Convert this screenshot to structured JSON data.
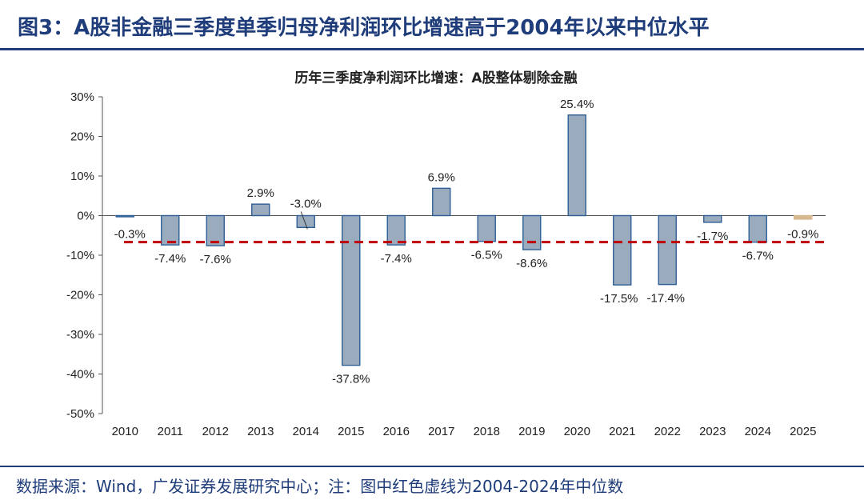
{
  "figure_title": "图3：A股非金融三季度单季归母净利润环比增速高于2004年以来中位水平",
  "footer": "数据来源：Wind，广发证券发展研究中心；注：图中红色虚线为2004-2024年中位数",
  "colors": {
    "title_blue": "#1f3d7a",
    "bar_fill": "#9aabbd",
    "bar_stroke": "#2e5f96",
    "bar_highlight": "#d8b98f",
    "median_line": "#c00000"
  },
  "chart_data": {
    "type": "bar",
    "title": "历年三季度净利润环比增速：A股整体剔除金融",
    "categories": [
      "2010",
      "2011",
      "2012",
      "2013",
      "2014",
      "2015",
      "2016",
      "2017",
      "2018",
      "2019",
      "2020",
      "2021",
      "2022",
      "2023",
      "2024",
      "2025"
    ],
    "values": [
      -0.3,
      -7.4,
      -7.6,
      2.9,
      -3.0,
      -37.8,
      -7.4,
      6.9,
      -6.5,
      -8.6,
      25.4,
      -17.5,
      -17.4,
      -1.7,
      -6.7,
      -0.9
    ],
    "value_labels": [
      "-0.3%",
      "-7.4%",
      "-7.6%",
      "2.9%",
      "-3.0%",
      "-37.8%",
      "-7.4%",
      "6.9%",
      "-6.5%",
      "-8.6%",
      "25.4%",
      "-17.5%",
      "-17.4%",
      "-1.7%",
      "-6.7%",
      "-0.9%"
    ],
    "highlight_index": 15,
    "median": -6.7,
    "median_style": "red dashed",
    "ylim": [
      -50,
      30
    ],
    "yticks": [
      30,
      20,
      10,
      0,
      -10,
      -20,
      -30,
      -40,
      -50
    ],
    "ytick_labels": [
      "30%",
      "20%",
      "10%",
      "0%",
      "-10%",
      "-20%",
      "-30%",
      "-40%",
      "-50%"
    ],
    "xlabel": "",
    "ylabel": ""
  }
}
